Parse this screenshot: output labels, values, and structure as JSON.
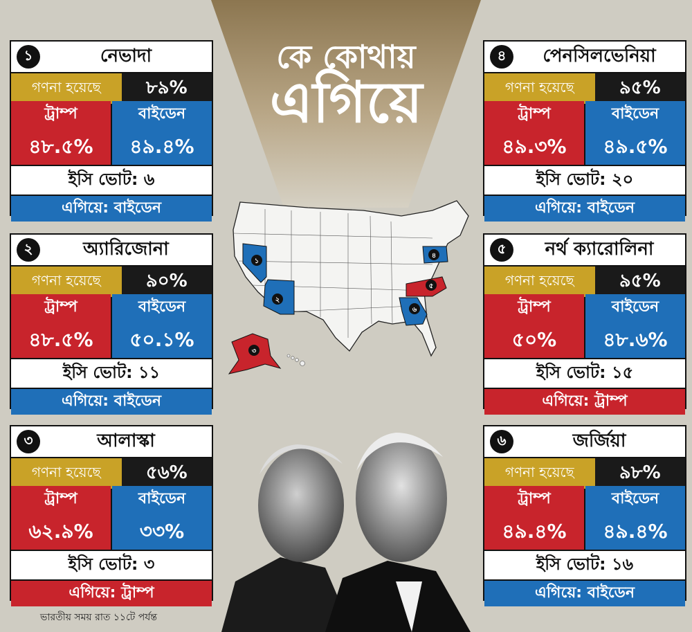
{
  "title": {
    "line1": "কে কোথায়",
    "line2": "এগিয়ে"
  },
  "colors": {
    "trump": "#c8242c",
    "biden": "#1f6fb8",
    "counted": "#c9a227",
    "background": "#cfccc2"
  },
  "states": [
    {
      "num": "১",
      "name": "নেভাদা",
      "counted_label": "গণনা হয়েছে",
      "counted": "৮৯%",
      "trump_label": "ট্রাম্প",
      "trump_pct": "৪৮.৫%",
      "biden_label": "বাইডেন",
      "biden_pct": "৪৯.৪%",
      "ec": "ইসি ভোট: ৬",
      "lead": "এগিয়ে: বাইডেন",
      "leader": "biden"
    },
    {
      "num": "২",
      "name": "অ্যারিজোনা",
      "counted_label": "গণনা হয়েছে",
      "counted": "৯০%",
      "trump_label": "ট্রাম্প",
      "trump_pct": "৪৮.৫%",
      "biden_label": "বাইডেন",
      "biden_pct": "৫০.১%",
      "ec": "ইসি ভোট: ১১",
      "lead": "এগিয়ে: বাইডেন",
      "leader": "biden"
    },
    {
      "num": "৩",
      "name": "আলাস্কা",
      "counted_label": "গণনা হয়েছে",
      "counted": "৫৬%",
      "trump_label": "ট্রাম্প",
      "trump_pct": "৬২.৯%",
      "biden_label": "বাইডেন",
      "biden_pct": "৩৩%",
      "ec": "ইসি ভোট: ৩",
      "lead": "এগিয়ে: ট্রাম্প",
      "leader": "trump"
    },
    {
      "num": "৪",
      "name": "পেনসিলভেনিয়া",
      "counted_label": "গণনা হয়েছে",
      "counted": "৯৫%",
      "trump_label": "ট্রাম্প",
      "trump_pct": "৪৯.৩%",
      "biden_label": "বাইডেন",
      "biden_pct": "৪৯.৫%",
      "ec": "ইসি ভোট: ২০",
      "lead": "এগিয়ে: বাইডেন",
      "leader": "biden"
    },
    {
      "num": "৫",
      "name": "নর্থ ক্যারোলিনা",
      "counted_label": "গণনা হয়েছে",
      "counted": "৯৫%",
      "trump_label": "ট্রাম্প",
      "trump_pct": "৫০%",
      "biden_label": "বাইডেন",
      "biden_pct": "৪৮.৬%",
      "ec": "ইসি ভোট: ১৫",
      "lead": "এগিয়ে: ট্রাম্প",
      "leader": "trump"
    },
    {
      "num": "৬",
      "name": "জর্জিয়া",
      "counted_label": "গণনা হয়েছে",
      "counted": "৯৮%",
      "trump_label": "ট্রাম্প",
      "trump_pct": "৪৯.৪%",
      "biden_label": "বাইডেন",
      "biden_pct": "৪৯.৪%",
      "ec": "ইসি ভোট: ১৬",
      "lead": "এগিয়ে: বাইডেন",
      "leader": "biden"
    }
  ],
  "map_markers": [
    "১",
    "২",
    "৩",
    "৪",
    "৫",
    "৬"
  ],
  "footnote": "ভারতীয় সময় রাত ১১টে পর্যন্ত"
}
